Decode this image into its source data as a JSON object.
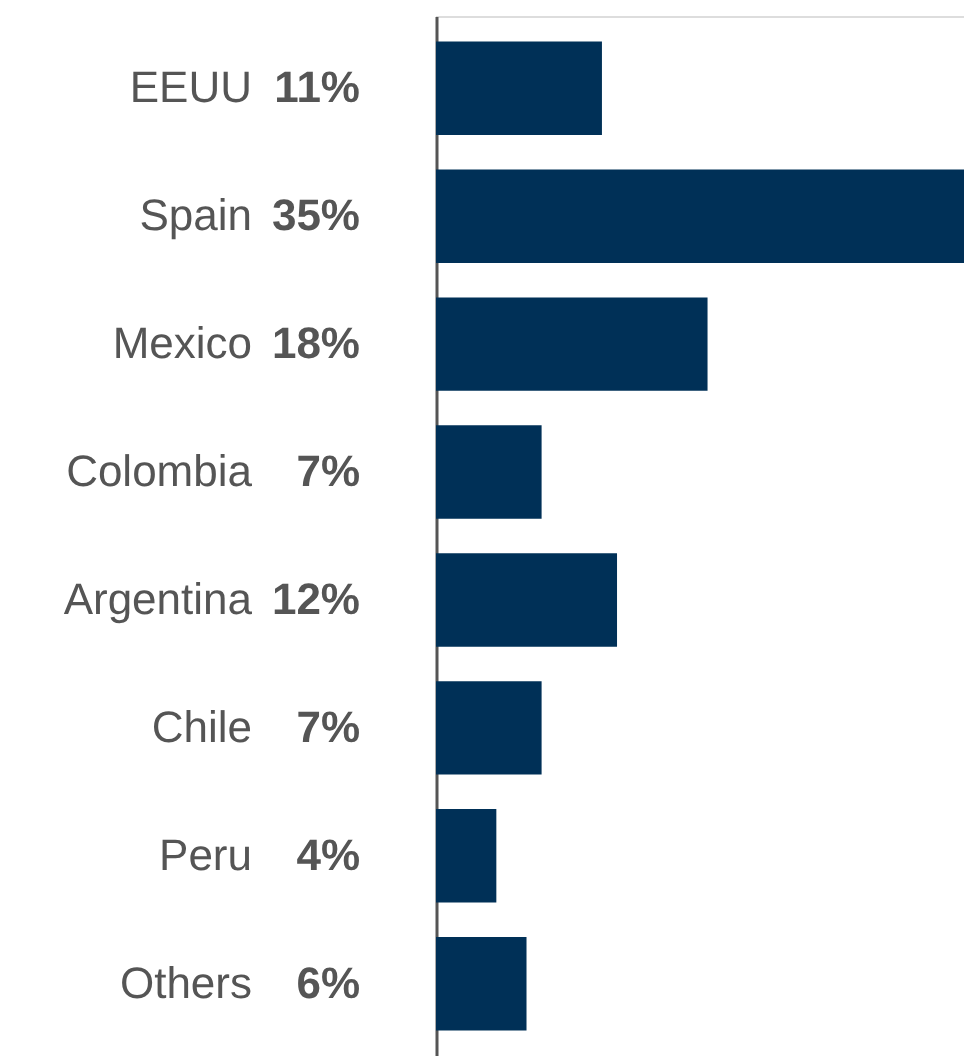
{
  "chart_data": {
    "type": "bar",
    "orientation": "horizontal",
    "categories": [
      "EEUU",
      "Spain",
      "Mexico",
      "Colombia",
      "Argentina",
      "Chile",
      "Peru",
      "Others"
    ],
    "values": [
      11,
      35,
      18,
      7,
      12,
      7,
      4,
      6
    ],
    "value_labels": [
      "11%",
      "35%",
      "18%",
      "7%",
      "12%",
      "7%",
      "4%",
      "6%"
    ],
    "color": "#003057"
  }
}
